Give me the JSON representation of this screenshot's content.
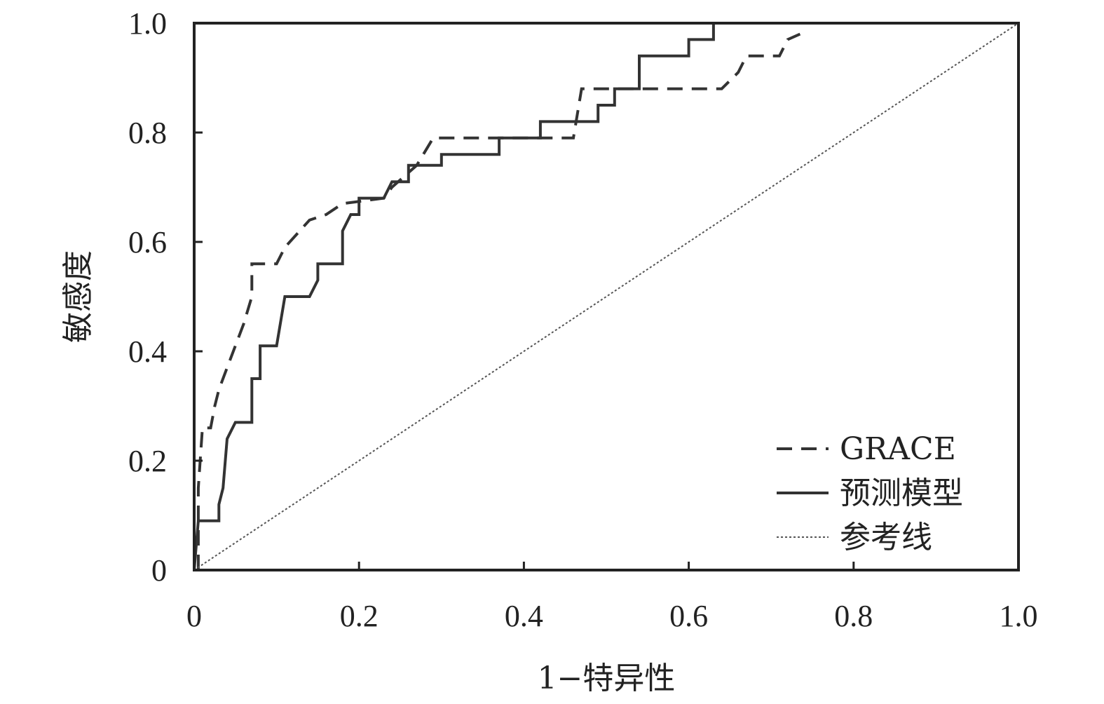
{
  "chart_data": {
    "type": "line",
    "title": "",
    "xlabel": "1−特异性",
    "ylabel": "敏感度",
    "xlim": [
      0,
      1
    ],
    "ylim": [
      0,
      1
    ],
    "xticks": [
      "0",
      "0.2",
      "0.4",
      "0.6",
      "0.8",
      "1.0"
    ],
    "yticks": [
      "0",
      "0.2",
      "0.4",
      "0.6",
      "0.8",
      "1.0"
    ],
    "grid": false,
    "legend_position": "bottom-right",
    "series": [
      {
        "name": "GRACE",
        "style": "dashed",
        "color": "#333333",
        "points": [
          [
            0.005,
            0.0
          ],
          [
            0.005,
            0.15
          ],
          [
            0.01,
            0.26
          ],
          [
            0.02,
            0.26
          ],
          [
            0.025,
            0.3
          ],
          [
            0.03,
            0.33
          ],
          [
            0.04,
            0.37
          ],
          [
            0.05,
            0.41
          ],
          [
            0.06,
            0.45
          ],
          [
            0.07,
            0.5
          ],
          [
            0.07,
            0.56
          ],
          [
            0.1,
            0.56
          ],
          [
            0.11,
            0.59
          ],
          [
            0.14,
            0.64
          ],
          [
            0.16,
            0.65
          ],
          [
            0.18,
            0.67
          ],
          [
            0.23,
            0.68
          ],
          [
            0.24,
            0.7
          ],
          [
            0.27,
            0.74
          ],
          [
            0.29,
            0.79
          ],
          [
            0.46,
            0.79
          ],
          [
            0.47,
            0.88
          ],
          [
            0.64,
            0.88
          ],
          [
            0.66,
            0.91
          ],
          [
            0.67,
            0.94
          ],
          [
            0.71,
            0.94
          ],
          [
            0.72,
            0.97
          ],
          [
            0.735,
            0.98
          ]
        ]
      },
      {
        "name": "预测模型",
        "style": "solid",
        "color": "#333333",
        "points": [
          [
            0.0,
            0.0
          ],
          [
            0.005,
            0.09
          ],
          [
            0.03,
            0.09
          ],
          [
            0.03,
            0.12
          ],
          [
            0.035,
            0.15
          ],
          [
            0.04,
            0.24
          ],
          [
            0.05,
            0.27
          ],
          [
            0.07,
            0.27
          ],
          [
            0.07,
            0.35
          ],
          [
            0.08,
            0.35
          ],
          [
            0.08,
            0.41
          ],
          [
            0.1,
            0.41
          ],
          [
            0.11,
            0.5
          ],
          [
            0.14,
            0.5
          ],
          [
            0.15,
            0.53
          ],
          [
            0.15,
            0.56
          ],
          [
            0.18,
            0.56
          ],
          [
            0.18,
            0.62
          ],
          [
            0.19,
            0.65
          ],
          [
            0.2,
            0.65
          ],
          [
            0.2,
            0.68
          ],
          [
            0.23,
            0.68
          ],
          [
            0.24,
            0.71
          ],
          [
            0.26,
            0.71
          ],
          [
            0.26,
            0.74
          ],
          [
            0.3,
            0.74
          ],
          [
            0.3,
            0.76
          ],
          [
            0.37,
            0.76
          ],
          [
            0.37,
            0.79
          ],
          [
            0.42,
            0.79
          ],
          [
            0.42,
            0.82
          ],
          [
            0.49,
            0.82
          ],
          [
            0.49,
            0.85
          ],
          [
            0.51,
            0.85
          ],
          [
            0.51,
            0.88
          ],
          [
            0.54,
            0.88
          ],
          [
            0.54,
            0.94
          ],
          [
            0.6,
            0.94
          ],
          [
            0.6,
            0.97
          ],
          [
            0.63,
            0.97
          ],
          [
            0.63,
            1.0
          ]
        ]
      },
      {
        "name": "参考线",
        "style": "dotted",
        "color": "#555555",
        "points": [
          [
            0.0,
            0.0
          ],
          [
            1.0,
            1.0
          ]
        ]
      }
    ]
  }
}
